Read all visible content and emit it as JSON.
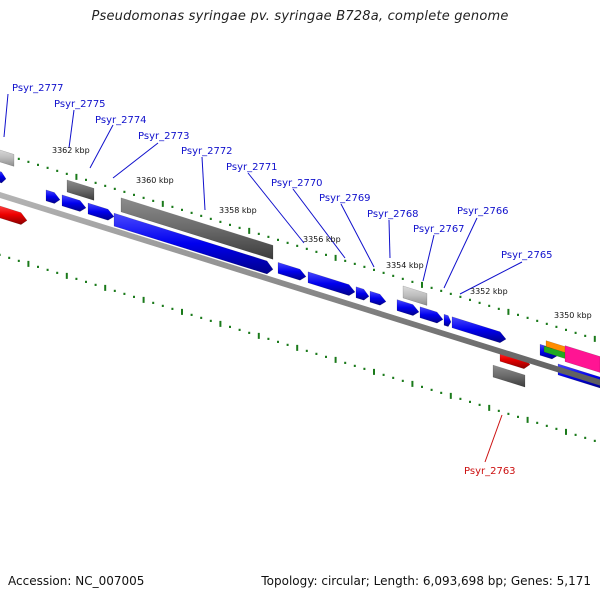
{
  "title": "Pseudomonas syringae pv. syringae B728a, complete genome",
  "footer": {
    "accession": "Accession: NC_007005",
    "topology": "Topology: circular; Length: 6,093,698 bp; Genes: 5,171"
  },
  "colors": {
    "backbone": "#8a8a8a",
    "tick": "#1a7a1a",
    "label_default": "#1010cc",
    "label_highlight": "#cc1010"
  },
  "kbp_labels": [
    "3362 kbp",
    "3360 kbp",
    "3358 kbp",
    "3356 kbp",
    "3354 kbp",
    "3352 kbp",
    "3350 kbp"
  ],
  "gene_labels": [
    {
      "text": "Psyr_2777",
      "color": "#1010cc"
    },
    {
      "text": "Psyr_2775",
      "color": "#1010cc"
    },
    {
      "text": "Psyr_2774",
      "color": "#1010cc"
    },
    {
      "text": "Psyr_2773",
      "color": "#1010cc"
    },
    {
      "text": "Psyr_2772",
      "color": "#1010cc"
    },
    {
      "text": "Psyr_2771",
      "color": "#1010cc"
    },
    {
      "text": "Psyr_2770",
      "color": "#1010cc"
    },
    {
      "text": "Psyr_2769",
      "color": "#1010cc"
    },
    {
      "text": "Psyr_2768",
      "color": "#1010cc"
    },
    {
      "text": "Psyr_2767",
      "color": "#1010cc"
    },
    {
      "text": "Psyr_2766",
      "color": "#1010cc"
    },
    {
      "text": "Psyr_2765",
      "color": "#1010cc"
    },
    {
      "text": "Psyr_2763",
      "color": "#cc1010"
    }
  ]
}
